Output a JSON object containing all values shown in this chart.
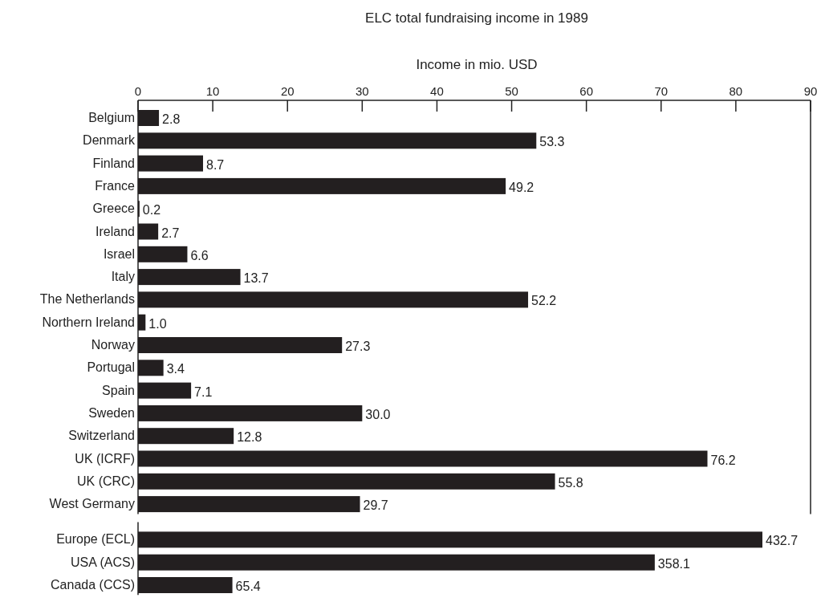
{
  "chart_data": [
    {
      "type": "bar",
      "orientation": "horizontal",
      "title": "ELC total fundraising income in 1989",
      "xlabel": "Income in mio. USD",
      "categories": [
        "Belgium",
        "Denmark",
        "Finland",
        "France",
        "Greece",
        "Ireland",
        "Israel",
        "Italy",
        "The Netherlands",
        "Northern Ireland",
        "Norway",
        "Portugal",
        "Spain",
        "Sweden",
        "Switzerland",
        "UK (ICRF)",
        "UK (CRC)",
        "West Germany"
      ],
      "values": [
        2.8,
        53.3,
        8.7,
        49.2,
        0.2,
        2.7,
        6.6,
        13.7,
        52.2,
        1.0,
        27.3,
        3.4,
        7.1,
        30.0,
        12.8,
        76.2,
        55.8,
        29.7
      ],
      "value_labels": [
        "2.8",
        "53.3",
        "8.7",
        "49.2",
        "0.2",
        "2.7",
        "6.6",
        "13.7",
        "52.2",
        "1.0",
        "27.3",
        "3.4",
        "7.1",
        "30.0",
        "12.8",
        "76.2",
        "55.8",
        "29.7"
      ],
      "color": "#231f20",
      "xlim": [
        0,
        90
      ],
      "xticks": [
        0,
        10,
        20,
        30,
        40,
        50,
        60,
        70,
        80,
        90
      ]
    },
    {
      "type": "bar",
      "orientation": "horizontal",
      "categories": [
        "Europe (ECL)",
        "USA (ACS)",
        "Canada (CCS)"
      ],
      "values": [
        432.7,
        358.1,
        65.4
      ],
      "color": "#231f20",
      "data_labels": true,
      "tick_labels": "y"
    }
  ]
}
